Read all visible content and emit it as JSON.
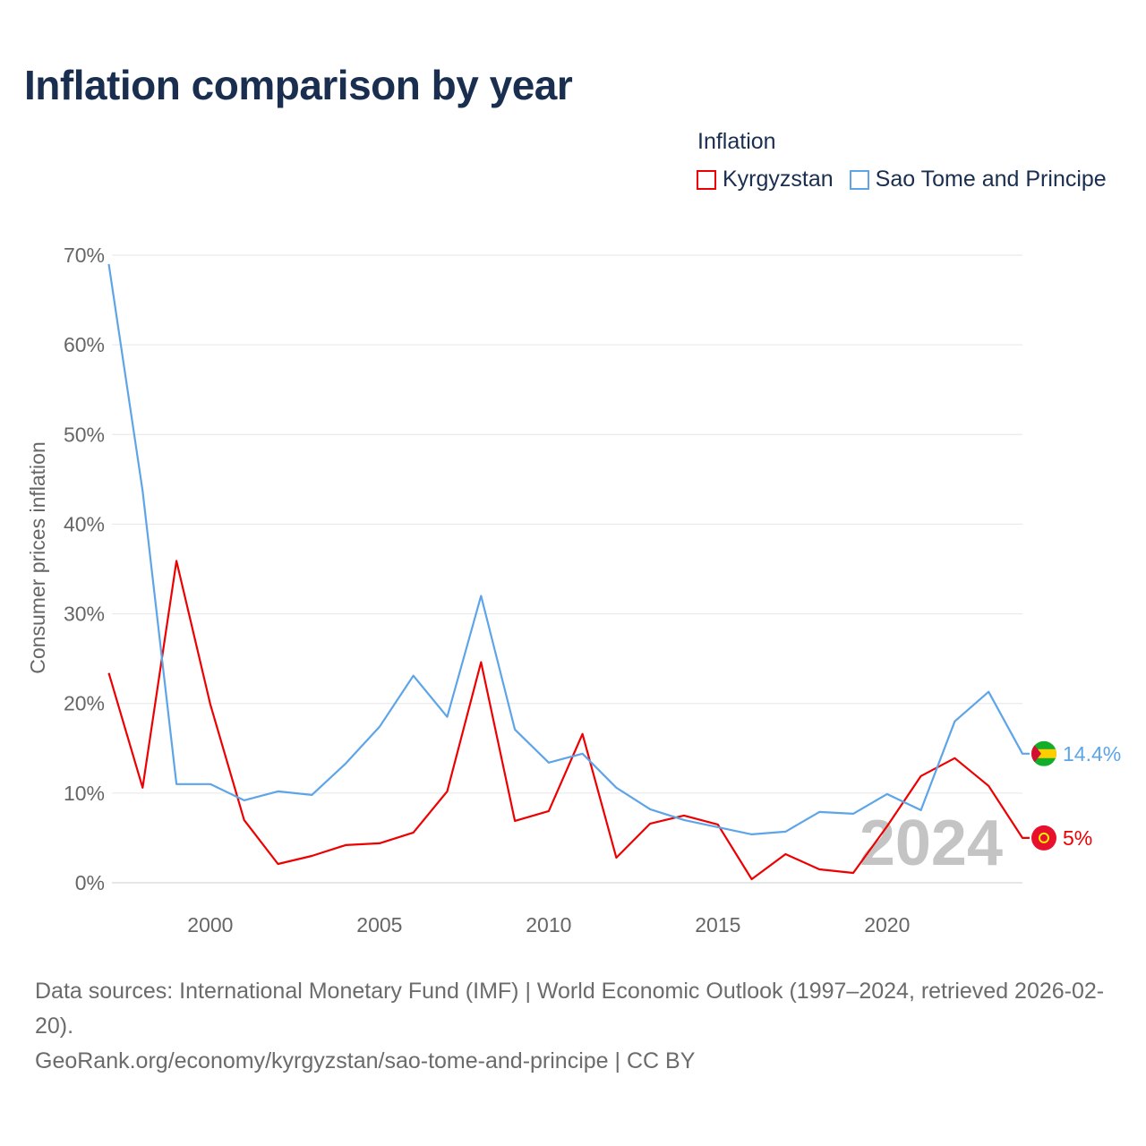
{
  "chart_data": {
    "type": "line",
    "title": "Inflation comparison by year",
    "legend_title": "Inflation",
    "legend_position": "top-right",
    "xlabel": "",
    "ylabel": "Consumer prices inflation",
    "x": [
      1997,
      1998,
      1999,
      2000,
      2001,
      2002,
      2003,
      2004,
      2005,
      2006,
      2007,
      2008,
      2009,
      2010,
      2011,
      2012,
      2013,
      2014,
      2015,
      2016,
      2017,
      2018,
      2019,
      2020,
      2021,
      2022,
      2023,
      2024
    ],
    "xlim": [
      1997,
      2024
    ],
    "ylim": [
      0,
      70
    ],
    "x_ticks": [
      2000,
      2005,
      2010,
      2015,
      2020
    ],
    "x_tick_labels": [
      "2000",
      "2005",
      "2010",
      "2015",
      "2020"
    ],
    "y_ticks": [
      0,
      10,
      20,
      30,
      40,
      50,
      60,
      70
    ],
    "y_tick_labels": [
      "0%",
      "10%",
      "20%",
      "30%",
      "40%",
      "50%",
      "60%",
      "70%"
    ],
    "grid": true,
    "year_watermark": "2024",
    "series": [
      {
        "name": "Kyrgyzstan",
        "color": "#ee0000",
        "end_label": "5%",
        "values": [
          23.4,
          10.6,
          35.9,
          19.9,
          7.0,
          2.1,
          3.0,
          4.2,
          4.4,
          5.6,
          10.2,
          24.6,
          6.9,
          8.0,
          16.6,
          2.8,
          6.6,
          7.5,
          6.5,
          0.4,
          3.2,
          1.5,
          1.1,
          6.3,
          11.9,
          13.9,
          10.8,
          5.0
        ]
      },
      {
        "name": "Sao Tome and Principe",
        "color": "#5da5e8",
        "end_label": "14.4%",
        "values": [
          69.0,
          43.7,
          11.0,
          11.0,
          9.2,
          10.2,
          9.8,
          13.3,
          17.4,
          23.1,
          18.5,
          32.0,
          17.1,
          13.4,
          14.4,
          10.6,
          8.2,
          7.0,
          6.2,
          5.4,
          5.7,
          7.9,
          7.7,
          9.9,
          8.1,
          18.0,
          21.3,
          14.4
        ]
      }
    ]
  },
  "footer": {
    "sources": "Data sources: International Monetary Fund (IMF) | World Economic Outlook (1997–2024, retrieved 2026-02-20).",
    "link": "GeoRank.org/economy/kyrgyzstan/sao-tome-and-principe | CC BY"
  }
}
